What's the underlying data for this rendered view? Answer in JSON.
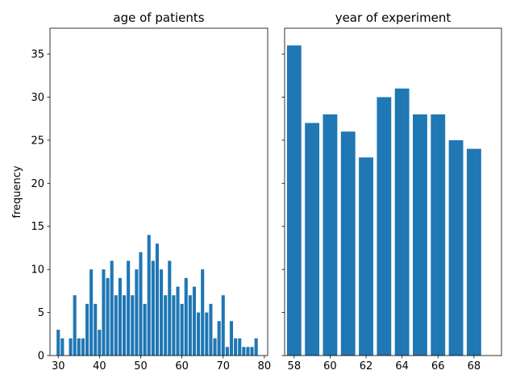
{
  "chart_data": [
    {
      "type": "bar",
      "title": "age of patients",
      "xlabel": "",
      "ylabel": "frequency",
      "xlim": [
        28,
        80.8
      ],
      "ylim": [
        0,
        38
      ],
      "xticks": [
        30,
        40,
        50,
        60,
        70,
        80
      ],
      "yticks": [
        0,
        5,
        10,
        15,
        20,
        25,
        30,
        35
      ],
      "grid": false,
      "color": "#1f77b4",
      "bar_width": 0.8,
      "x": [
        30,
        31,
        33,
        34,
        35,
        36,
        37,
        38,
        39,
        40,
        41,
        42,
        43,
        44,
        45,
        46,
        47,
        48,
        49,
        50,
        51,
        52,
        53,
        54,
        55,
        56,
        57,
        58,
        59,
        60,
        61,
        62,
        63,
        64,
        65,
        66,
        67,
        68,
        69,
        70,
        71,
        72,
        73,
        74,
        75,
        76,
        77,
        78
      ],
      "values": [
        3,
        2,
        2,
        7,
        2,
        2,
        6,
        10,
        6,
        3,
        10,
        9,
        11,
        7,
        9,
        7,
        11,
        7,
        10,
        12,
        6,
        14,
        11,
        13,
        10,
        7,
        11,
        7,
        8,
        6,
        9,
        7,
        8,
        5,
        10,
        5,
        6,
        2,
        4,
        7,
        1,
        4,
        2,
        2,
        1,
        1,
        1,
        2
      ]
    },
    {
      "type": "bar",
      "title": "year of experiment",
      "xlabel": "",
      "ylabel": "",
      "xlim": [
        57.47,
        69.53
      ],
      "ylim": [
        0,
        38
      ],
      "xticks": [
        58,
        60,
        62,
        64,
        66,
        68
      ],
      "yticks": [
        0,
        5,
        10,
        15,
        20,
        25,
        30,
        35
      ],
      "shared_y": true,
      "grid": false,
      "color": "#1f77b4",
      "bar_width": 0.8,
      "x": [
        58,
        59,
        60,
        61,
        62,
        63,
        64,
        65,
        66,
        67,
        68
      ],
      "values": [
        36,
        27,
        28,
        26,
        23,
        30,
        31,
        28,
        28,
        25,
        24
      ]
    }
  ]
}
